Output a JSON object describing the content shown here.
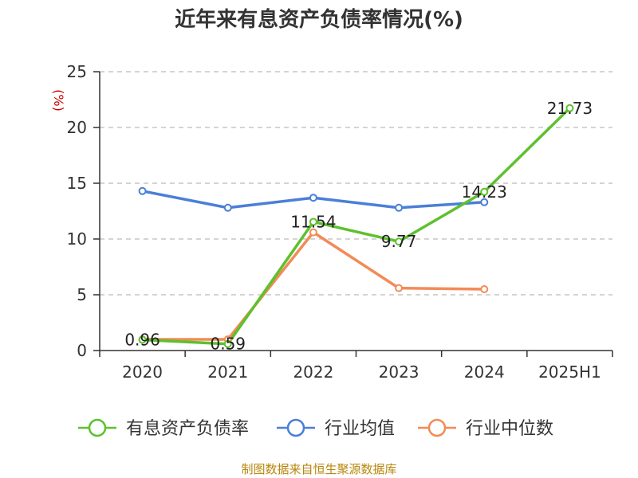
{
  "chart_data": {
    "type": "line",
    "title": "近年来有息资产负债率情况(%)",
    "unit_label": "(%)",
    "categories": [
      "2020",
      "2021",
      "2022",
      "2023",
      "2024",
      "2025H1"
    ],
    "ylim": [
      0,
      25
    ],
    "yticks": [
      0,
      5,
      10,
      15,
      20,
      25
    ],
    "grid": true,
    "legend_position": "bottom",
    "series": [
      {
        "name": "有息资产负债率",
        "color": "#5dc12e",
        "labeled": true,
        "values": [
          0.96,
          0.59,
          11.54,
          9.77,
          14.23,
          21.73
        ],
        "labels": [
          "0.96",
          "0.59",
          "11.54",
          "9.77",
          "14.23",
          "21.73"
        ]
      },
      {
        "name": "行业均值",
        "color": "#4a7fd8",
        "labeled": false,
        "values": [
          14.3,
          12.8,
          13.7,
          12.8,
          13.3,
          null
        ]
      },
      {
        "name": "行业中位数",
        "color": "#f28b57",
        "labeled": false,
        "values": [
          1.0,
          1.0,
          10.6,
          5.6,
          5.5,
          null
        ]
      }
    ]
  },
  "source_note": "制图数据来自恒生聚源数据库"
}
